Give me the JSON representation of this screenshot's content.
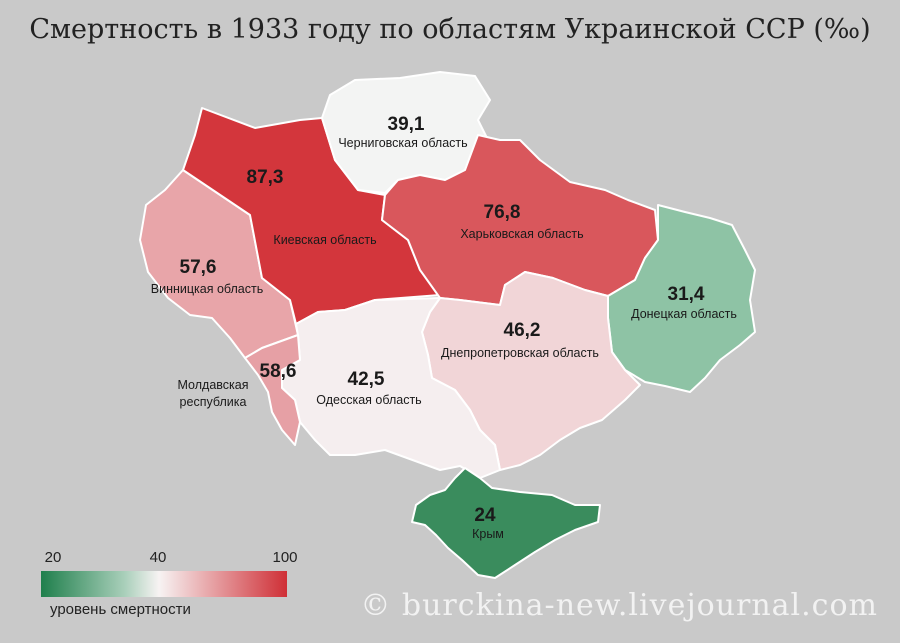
{
  "title": "Смертность в 1933 году по областям Украинской ССР (‰)",
  "credit": "© burckina-new.livejournal.com",
  "colors": {
    "background": "#c9c9c9",
    "low": "#2f8a5a",
    "mid": "#f7f3f3",
    "high": "#cf2f36"
  },
  "regions": [
    {
      "id": "kiev",
      "name": "Киевская область",
      "value": "87,3",
      "color": "#d3363c"
    },
    {
      "id": "chernigov",
      "name": "Черниговская область",
      "value": "39,1",
      "color": "#f3f4f3"
    },
    {
      "id": "kharkov",
      "name": "Харьковская область",
      "value": "76,8",
      "color": "#d9575c"
    },
    {
      "id": "vinnitsa",
      "name": "Винницкая область",
      "value": "57,6",
      "color": "#e8a5a9"
    },
    {
      "id": "donetsk",
      "name": "Донецкая область",
      "value": "31,4",
      "color": "#8ec3a5"
    },
    {
      "id": "dnepr",
      "name": "Днепропетровская область",
      "value": "46,2",
      "color": "#f1d5d7"
    },
    {
      "id": "odessa",
      "name": "Одесская область",
      "value": "42,5",
      "color": "#f5eeef"
    },
    {
      "id": "moldavia",
      "name_line1": "Молдавская",
      "name_line2": "республика",
      "value": "58,6",
      "color": "#e6a0a5"
    },
    {
      "id": "crimea",
      "name": "Крым",
      "value": "24",
      "color": "#3a8c5d"
    }
  ],
  "legend": {
    "ticks": [
      "20",
      "40",
      "100"
    ],
    "caption": "уровень смертности"
  }
}
